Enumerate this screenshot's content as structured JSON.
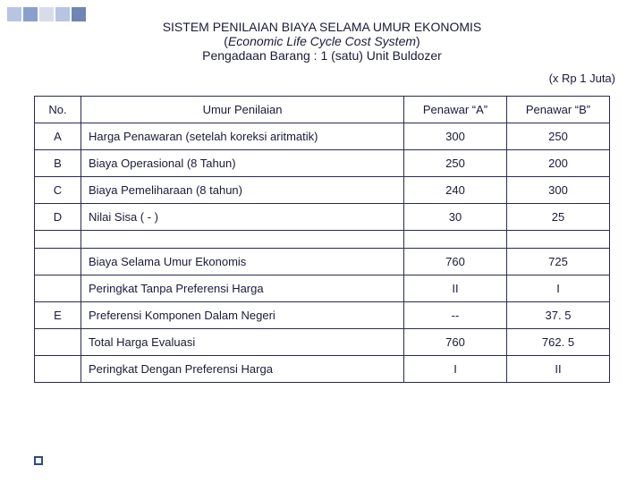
{
  "decor": {
    "squares": [
      "#b7c4e4",
      "#8aa0cc",
      "#d7dde8",
      "#b7c4e4",
      "#6f85b4"
    ]
  },
  "header": {
    "title_main": "SISTEM PENILAIAN BIAYA SELAMA UMUR EKONOMIS",
    "title_sub_open": "(",
    "title_sub_italic": "Economic Life Cycle Cost System",
    "title_sub_close": ")",
    "title_desc": "Pengadaan Barang : 1 (satu) Unit Buldozer",
    "unit_note": "(x Rp 1 Juta)"
  },
  "table": {
    "head": {
      "no": "No.",
      "desc": "Umur Penilaian",
      "col_a": "Penawar “A”",
      "col_b": "Penawar “B”"
    },
    "rows": [
      {
        "no": "A",
        "desc": "Harga Penawaran (setelah koreksi aritmatik)",
        "a": "300",
        "b": "250"
      },
      {
        "no": "B",
        "desc": "Biaya Operasional (8 Tahun)",
        "a": "250",
        "b": "200"
      },
      {
        "no": "C",
        "desc": "Biaya Pemeliharaan (8 tahun)",
        "a": "240",
        "b": "300"
      },
      {
        "no": "D",
        "desc": "Nilai Sisa ( - )",
        "a": "30",
        "b": "25"
      }
    ],
    "summary1": [
      {
        "no": "",
        "desc": "Biaya Selama Umur Ekonomis",
        "a": "760",
        "b": "725"
      },
      {
        "no": "",
        "desc": "Peringkat Tanpa Preferensi Harga",
        "a": "II",
        "b": "I"
      }
    ],
    "row_e": {
      "no": "E",
      "desc": "Preferensi Komponen Dalam Negeri",
      "a": "--",
      "b": "37. 5"
    },
    "summary2": [
      {
        "no": "",
        "desc": "Total Harga Evaluasi",
        "a": "760",
        "b": "762. 5"
      },
      {
        "no": "",
        "desc": "Peringkat Dengan Preferensi Harga",
        "a": "I",
        "b": "II"
      }
    ]
  },
  "colors": {
    "text": "#1a1a3a",
    "border": "#2a2a55",
    "bullet_border": "#2a4a8a"
  }
}
